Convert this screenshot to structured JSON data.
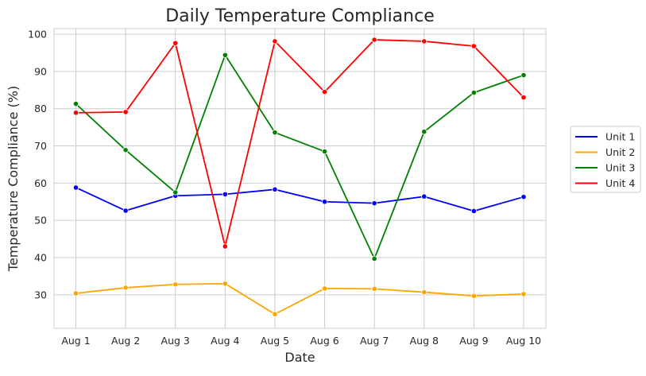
{
  "chart_data": {
    "type": "line",
    "title": "Daily Temperature Compliance",
    "xlabel": "Date",
    "ylabel": "Temperature Compliance (%)",
    "categories": [
      "Aug 1",
      "Aug 2",
      "Aug 3",
      "Aug 4",
      "Aug 5",
      "Aug 6",
      "Aug 7",
      "Aug 8",
      "Aug 9",
      "Aug 10"
    ],
    "ylim": [
      21,
      101.5
    ],
    "yticks": [
      30,
      40,
      50,
      60,
      70,
      80,
      90,
      100
    ],
    "grid": true,
    "legend_position": "right",
    "series": [
      {
        "name": "Unit 1",
        "color": "#0000ff",
        "values": [
          58.8,
          52.6,
          56.6,
          57.0,
          58.3,
          55.0,
          54.6,
          56.4,
          52.5,
          56.3
        ]
      },
      {
        "name": "Unit 2",
        "color": "#ffa500",
        "values": [
          30.4,
          31.9,
          32.8,
          33.0,
          24.8,
          31.7,
          31.6,
          30.7,
          29.7,
          30.2
        ]
      },
      {
        "name": "Unit 3",
        "color": "#008000",
        "values": [
          81.3,
          68.9,
          57.5,
          94.4,
          73.6,
          68.5,
          39.7,
          73.8,
          84.3,
          89.0
        ]
      },
      {
        "name": "Unit 4",
        "color": "#ff0000",
        "values": [
          78.9,
          79.1,
          97.6,
          43.0,
          98.1,
          84.5,
          98.5,
          98.1,
          96.8,
          83.0
        ]
      }
    ]
  }
}
